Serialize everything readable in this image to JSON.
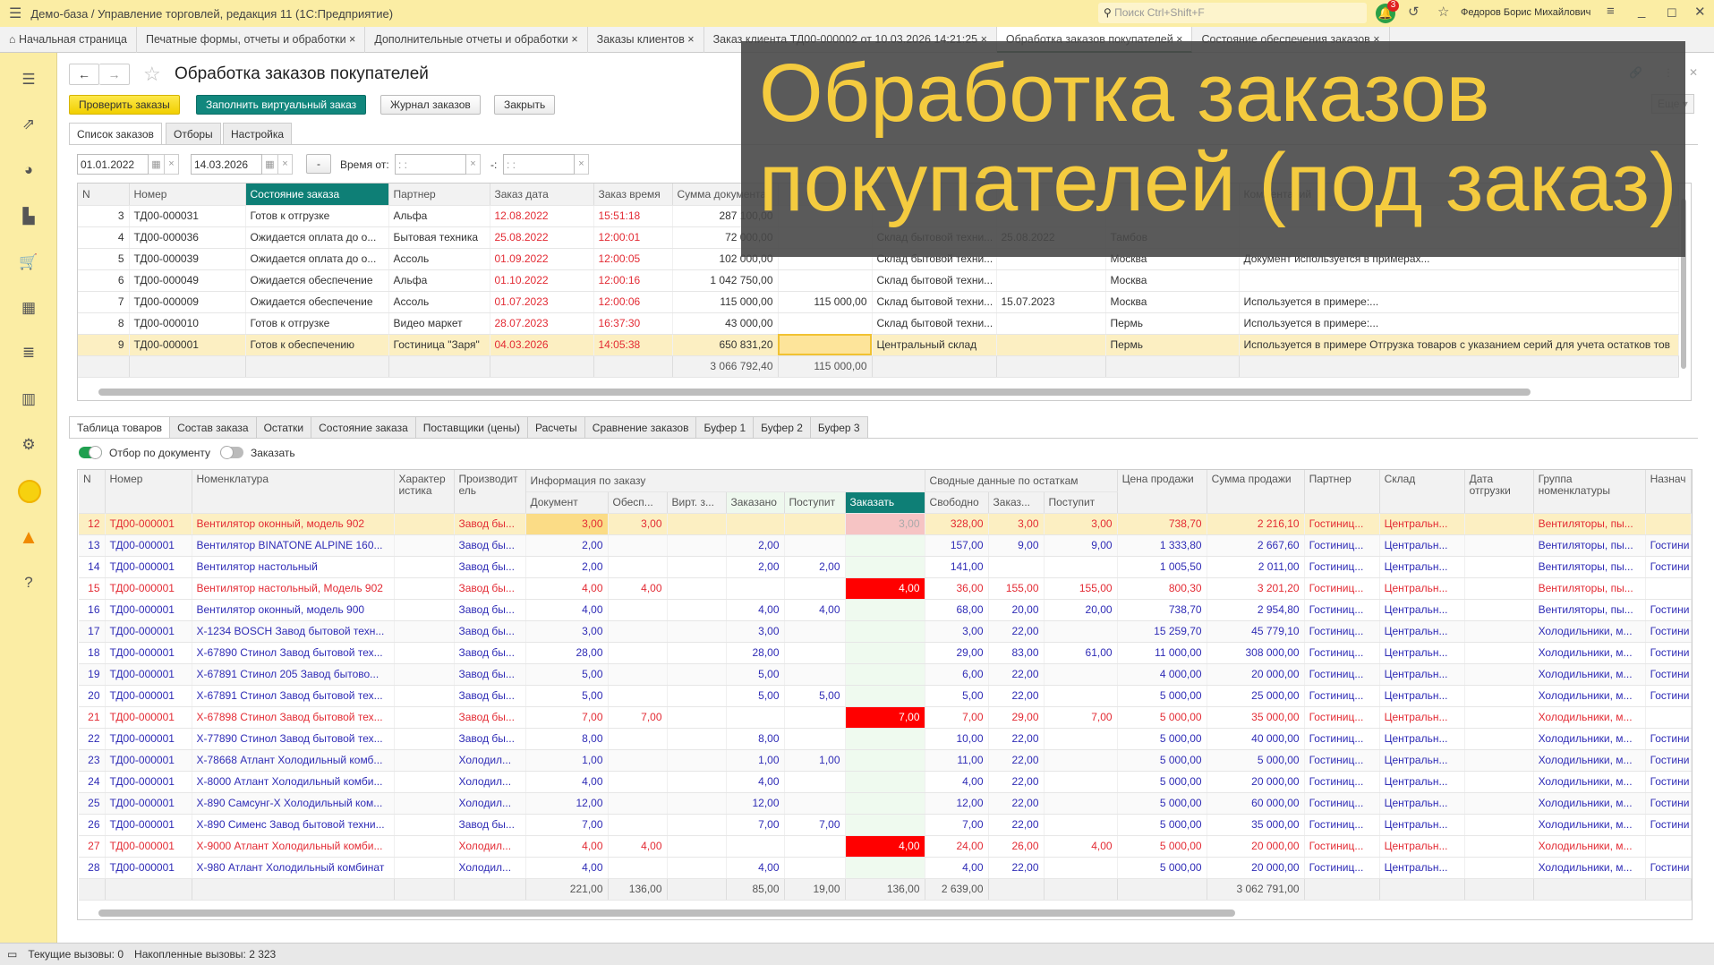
{
  "app": {
    "title": "Демо-база / Управление торговлей, редакция 11  (1С:Предприятие)",
    "search_placeholder": "Поиск Ctrl+Shift+F",
    "notifications": "3",
    "user": "Федоров Борис Михайлович"
  },
  "tabs": [
    {
      "label": "Начальная страница"
    },
    {
      "label": "Печатные формы, отчеты и обработки ×"
    },
    {
      "label": "Дополнительные отчеты и обработки ×"
    },
    {
      "label": "Заказы клиентов ×"
    },
    {
      "label": "Заказ клиента ТД00-000002 от 10.03.2026 14:21:25 ×"
    },
    {
      "label": "Обработка заказов покупателей ×",
      "active": true
    },
    {
      "label": "Состояние обеспечения заказов ×"
    }
  ],
  "sidebar": {
    "icons": [
      "menu-icon",
      "analytics-icon",
      "pie-chart-icon",
      "bag-icon",
      "cart-icon",
      "grid-icon",
      "stack-icon",
      "bar-chart-icon",
      "gear-icon",
      "status-circle-icon",
      "warning-icon",
      "help-icon"
    ]
  },
  "page": {
    "title": "Обработка заказов покупателей",
    "more": "Еще ▾"
  },
  "toolbar": {
    "check": "Проверить заказы",
    "fill": "Заполнить виртуальный заказ",
    "journal": "Журнал заказов",
    "close": "Закрыть"
  },
  "form_tabs": [
    "Список заказов",
    "Отборы",
    "Настройка"
  ],
  "filter": {
    "date_from": "01.01.2022",
    "date_to": "14.03.2026",
    "dash": "-",
    "time_label": "Время от:",
    "time_from": ": :",
    "time_sep": "-:",
    "time_to": ": :"
  },
  "upper": {
    "headers": [
      "N",
      "Номер",
      "Состояние заказа",
      "Партнер",
      "Заказ дата",
      "Заказ время",
      "Сумма документа",
      "",
      "",
      "",
      "",
      "Комментарий"
    ],
    "rows": [
      [
        "3",
        "ТД00-000031",
        "Готов к отгрузке",
        "Альфа",
        "12.08.2022",
        "15:51:18",
        "287 100,00",
        "",
        "",
        "",
        "",
        ""
      ],
      [
        "4",
        "ТД00-000036",
        "Ожидается оплата до о...",
        "Бытовая техника",
        "25.08.2022",
        "12:00:01",
        "72 000,00",
        "",
        "Склад бытовой техни...",
        "25.08.2022",
        "Тамбов",
        ""
      ],
      [
        "5",
        "ТД00-000039",
        "Ожидается оплата до о...",
        "Ассоль",
        "01.09.2022",
        "12:00:05",
        "102 000,00",
        "",
        "Склад бытовой техни...",
        "",
        "Москва",
        "Документ используется в примерах..."
      ],
      [
        "6",
        "ТД00-000049",
        "Ожидается обеспечение",
        "Альфа",
        "01.10.2022",
        "12:00:16",
        "1 042 750,00",
        "",
        "Склад бытовой техни...",
        "",
        "Москва",
        ""
      ],
      [
        "7",
        "ТД00-000009",
        "Ожидается обеспечение",
        "Ассоль",
        "01.07.2023",
        "12:00:06",
        "115 000,00",
        "115 000,00",
        "Склад бытовой техни...",
        "15.07.2023",
        "Москва",
        "Используется в примере:..."
      ],
      [
        "8",
        "ТД00-000010",
        "Готов к отгрузке",
        "Видео маркет",
        "28.07.2023",
        "16:37:30",
        "43 000,00",
        "",
        "Склад бытовой техни...",
        "",
        "Пермь",
        "Используется в примере:..."
      ],
      [
        "9",
        "ТД00-000001",
        "Готов к обеспечению",
        "Гостиница \"Заря\"",
        "04.03.2026",
        "14:05:38",
        "650 831,20",
        "",
        "Центральный склад",
        "",
        "Пермь",
        "Используется в примере Отгрузка товаров с указанием серий для учета остатков тов"
      ]
    ],
    "selected_row": 6,
    "totals": [
      "",
      "",
      "",
      "",
      "",
      "",
      "3 066 792,40",
      "115 000,00",
      "",
      "",
      "",
      ""
    ]
  },
  "lower_tabs": [
    "Таблица товаров",
    "Состав заказа",
    "Остатки",
    "Состояние заказа",
    "Поставщики (цены)",
    "Расчеты",
    "Сравнение заказов",
    "Буфер 1",
    "Буфер 2",
    "Буфер 3"
  ],
  "toggles": {
    "by_document": {
      "label": "Отбор по документу",
      "on": true
    },
    "to_order": {
      "label": "Заказать",
      "on": false
    }
  },
  "lower": {
    "group_headers": {
      "order_info": "Информация по заказу",
      "stock": "Сводные данные по остаткам"
    },
    "headers": [
      "N",
      "Номер",
      "Номенклатура",
      "Характер истика",
      "Производит ель",
      "Документ",
      "Обесп...",
      "Вирт. з...",
      "Заказано",
      "Поступит",
      "Заказать",
      "Свободно",
      "Заказ...",
      "Поступит",
      "Цена продажи",
      "Сумма продажи",
      "Партнер",
      "Склад",
      "Дата отгрузки",
      "Группа номенклатуры",
      "Назнач"
    ],
    "rows": [
      {
        "status": "sel",
        "cells": [
          "12",
          "ТД00-000001",
          "Вентилятор оконный, модель 902",
          "",
          "Завод бы...",
          "3,00",
          "3,00",
          "",
          "",
          "",
          "3,00",
          "328,00",
          "3,00",
          "3,00",
          "738,70",
          "2 216,10",
          "Гостиниц...",
          "Центральн...",
          "",
          "Вентиляторы, пы...",
          ""
        ]
      },
      {
        "status": "normal",
        "cells": [
          "13",
          "ТД00-000001",
          "Вентилятор BINATONE ALPINE 160...",
          "",
          "Завод бы...",
          "2,00",
          "",
          "",
          "2,00",
          "",
          "",
          "157,00",
          "9,00",
          "9,00",
          "1 333,80",
          "2 667,60",
          "Гостиниц...",
          "Центральн...",
          "",
          "Вентиляторы, пы...",
          "Гостини"
        ]
      },
      {
        "status": "normal",
        "cells": [
          "14",
          "ТД00-000001",
          "Вентилятор настольный",
          "",
          "Завод бы...",
          "2,00",
          "",
          "",
          "2,00",
          "2,00",
          "",
          "141,00",
          "",
          "",
          "1 005,50",
          "2 011,00",
          "Гостиниц...",
          "Центральн...",
          "",
          "Вентиляторы, пы...",
          "Гостини"
        ]
      },
      {
        "status": "red",
        "cells": [
          "15",
          "ТД00-000001",
          "Вентилятор настольный, Модель 902",
          "",
          "Завод бы...",
          "4,00",
          "4,00",
          "",
          "",
          "",
          "4,00",
          "36,00",
          "155,00",
          "155,00",
          "800,30",
          "3 201,20",
          "Гостиниц...",
          "Центральн...",
          "",
          "Вентиляторы, пы...",
          ""
        ]
      },
      {
        "status": "normal",
        "cells": [
          "16",
          "ТД00-000001",
          "Вентилятор оконный, модель 900",
          "",
          "Завод бы...",
          "4,00",
          "",
          "",
          "4,00",
          "4,00",
          "",
          "68,00",
          "20,00",
          "20,00",
          "738,70",
          "2 954,80",
          "Гостиниц...",
          "Центральн...",
          "",
          "Вентиляторы, пы...",
          "Гостини"
        ]
      },
      {
        "status": "normal",
        "cells": [
          "17",
          "ТД00-000001",
          "Х-1234 BOSCH Завод бытовой техн...",
          "",
          "Завод бы...",
          "3,00",
          "",
          "",
          "3,00",
          "",
          "",
          "3,00",
          "22,00",
          "",
          "15 259,70",
          "45 779,10",
          "Гостиниц...",
          "Центральн...",
          "",
          "Холодильники, м...",
          "Гостини"
        ]
      },
      {
        "status": "normal",
        "cells": [
          "18",
          "ТД00-000001",
          "Х-67890 Стинол Завод бытовой тех...",
          "",
          "Завод бы...",
          "28,00",
          "",
          "",
          "28,00",
          "",
          "",
          "29,00",
          "83,00",
          "61,00",
          "11 000,00",
          "308 000,00",
          "Гостиниц...",
          "Центральн...",
          "",
          "Холодильники, м...",
          "Гостини"
        ]
      },
      {
        "status": "normal",
        "cells": [
          "19",
          "ТД00-000001",
          "Х-67891 Стинол 205 Завод бытово...",
          "",
          "Завод бы...",
          "5,00",
          "",
          "",
          "5,00",
          "",
          "",
          "6,00",
          "22,00",
          "",
          "4 000,00",
          "20 000,00",
          "Гостиниц...",
          "Центральн...",
          "",
          "Холодильники, м...",
          "Гостини"
        ]
      },
      {
        "status": "normal",
        "cells": [
          "20",
          "ТД00-000001",
          "Х-67891 Стинол Завод бытовой тех...",
          "",
          "Завод бы...",
          "5,00",
          "",
          "",
          "5,00",
          "5,00",
          "",
          "5,00",
          "22,00",
          "",
          "5 000,00",
          "25 000,00",
          "Гостиниц...",
          "Центральн...",
          "",
          "Холодильники, м...",
          "Гостини"
        ]
      },
      {
        "status": "red",
        "cells": [
          "21",
          "ТД00-000001",
          "Х-67898 Стинол Завод бытовой тех...",
          "",
          "Завод бы...",
          "7,00",
          "7,00",
          "",
          "",
          "",
          "7,00",
          "7,00",
          "29,00",
          "7,00",
          "5 000,00",
          "35 000,00",
          "Гостиниц...",
          "Центральн...",
          "",
          "Холодильники, м...",
          ""
        ]
      },
      {
        "status": "normal",
        "cells": [
          "22",
          "ТД00-000001",
          "Х-77890 Стинол Завод бытовой тех...",
          "",
          "Завод бы...",
          "8,00",
          "",
          "",
          "8,00",
          "",
          "",
          "10,00",
          "22,00",
          "",
          "5 000,00",
          "40 000,00",
          "Гостиниц...",
          "Центральн...",
          "",
          "Холодильники, м...",
          "Гостини"
        ]
      },
      {
        "status": "normal",
        "cells": [
          "23",
          "ТД00-000001",
          "Х-78668 Атлант Холодильный комб...",
          "",
          "Холодил...",
          "1,00",
          "",
          "",
          "1,00",
          "1,00",
          "",
          "11,00",
          "22,00",
          "",
          "5 000,00",
          "5 000,00",
          "Гостиниц...",
          "Центральн...",
          "",
          "Холодильники, м...",
          "Гостини"
        ]
      },
      {
        "status": "normal",
        "cells": [
          "24",
          "ТД00-000001",
          "Х-8000 Атлант Холодильный комби...",
          "",
          "Холодил...",
          "4,00",
          "",
          "",
          "4,00",
          "",
          "",
          "4,00",
          "22,00",
          "",
          "5 000,00",
          "20 000,00",
          "Гостиниц...",
          "Центральн...",
          "",
          "Холодильники, м...",
          "Гостини"
        ]
      },
      {
        "status": "normal",
        "cells": [
          "25",
          "ТД00-000001",
          "Х-890 Самсунг-Х Холодильный ком...",
          "",
          "Холодил...",
          "12,00",
          "",
          "",
          "12,00",
          "",
          "",
          "12,00",
          "22,00",
          "",
          "5 000,00",
          "60 000,00",
          "Гостиниц...",
          "Центральн...",
          "",
          "Холодильники, м...",
          "Гостини"
        ]
      },
      {
        "status": "normal",
        "cells": [
          "26",
          "ТД00-000001",
          "Х-890 Сименс Завод бытовой техни...",
          "",
          "Завод бы...",
          "7,00",
          "",
          "",
          "7,00",
          "7,00",
          "",
          "7,00",
          "22,00",
          "",
          "5 000,00",
          "35 000,00",
          "Гостиниц...",
          "Центральн...",
          "",
          "Холодильники, м...",
          "Гостини"
        ]
      },
      {
        "status": "red",
        "cells": [
          "27",
          "ТД00-000001",
          "Х-9000 Атлант Холодильный комби...",
          "",
          "Холодил...",
          "4,00",
          "4,00",
          "",
          "",
          "",
          "4,00",
          "24,00",
          "26,00",
          "4,00",
          "5 000,00",
          "20 000,00",
          "Гостиниц...",
          "Центральн...",
          "",
          "Холодильники, м...",
          ""
        ]
      },
      {
        "status": "normal",
        "cells": [
          "28",
          "ТД00-000001",
          "Х-980 Атлант Холодильный комбинат",
          "",
          "Холодил...",
          "4,00",
          "",
          "",
          "4,00",
          "",
          "",
          "4,00",
          "22,00",
          "",
          "5 000,00",
          "20 000,00",
          "Гостиниц...",
          "Центральн...",
          "",
          "Холодильники, м...",
          "Гостини"
        ]
      }
    ],
    "totals": [
      "",
      "",
      "",
      "",
      "",
      "221,00",
      "136,00",
      "",
      "85,00",
      "19,00",
      "136,00",
      "2 639,00",
      "",
      "",
      "",
      "3 062 791,00",
      "",
      "",
      "",
      "",
      ""
    ]
  },
  "overlay": {
    "line1": "Обработка заказов",
    "line2": "покупателей (под заказ)"
  },
  "status": {
    "current": "Текущие вызовы: 0",
    "accumulated": "Накопленные вызовы: 2 323"
  },
  "colors": {
    "accent_teal": "#0e7f76",
    "alert_red": "#ff0000",
    "text_red": "#e32b34",
    "text_blue": "#2f2cb6",
    "selected_row": "#fcefc2",
    "shell_yellow": "#fbeda4"
  }
}
